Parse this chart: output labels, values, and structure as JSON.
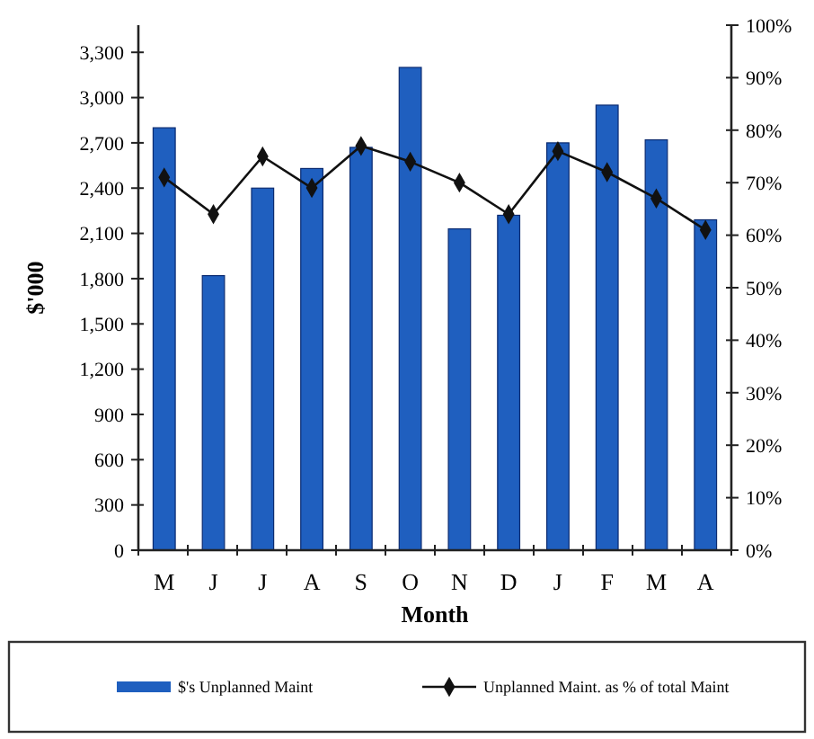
{
  "chart_data": {
    "type": "bar",
    "xlabel": "Month",
    "ylabel": "$'000",
    "categories": [
      "M",
      "J",
      "J",
      "A",
      "S",
      "O",
      "N",
      "D",
      "J",
      "F",
      "M",
      "A"
    ],
    "series": [
      {
        "name": "$'s Unplanned Maint",
        "color": "#1f5fbf",
        "values": [
          2800,
          1820,
          2400,
          2530,
          2670,
          3200,
          2130,
          2220,
          2700,
          2950,
          2720,
          2190
        ]
      },
      {
        "name": "Unplanned Maint. as % of total Maint",
        "type": "line",
        "axis": "y2",
        "color": "#111111",
        "values": [
          71,
          64,
          75,
          69,
          77,
          74,
          70,
          64,
          76,
          72,
          67,
          61
        ]
      }
    ],
    "ylim": [
      0,
      3480
    ],
    "yticks": [
      {
        "value": 0,
        "label": "0"
      },
      {
        "value": 300,
        "label": "300"
      },
      {
        "value": 600,
        "label": "600"
      },
      {
        "value": 900,
        "label": "900"
      },
      {
        "value": 1200,
        "label": "1,200"
      },
      {
        "value": 1500,
        "label": "1,500"
      },
      {
        "value": 1800,
        "label": "1,800"
      },
      {
        "value": 2100,
        "label": "2,100"
      },
      {
        "value": 2400,
        "label": "2,400"
      },
      {
        "value": 2700,
        "label": "2,700"
      },
      {
        "value": 3000,
        "label": "3,000"
      },
      {
        "value": 3300,
        "label": "3,300"
      }
    ],
    "y2lim": [
      0,
      100
    ],
    "y2ticks": [
      {
        "value": 0,
        "label": "0%"
      },
      {
        "value": 10,
        "label": "10%"
      },
      {
        "value": 20,
        "label": "20%"
      },
      {
        "value": 30,
        "label": "30%"
      },
      {
        "value": 40,
        "label": "40%"
      },
      {
        "value": 50,
        "label": "50%"
      },
      {
        "value": 60,
        "label": "60%"
      },
      {
        "value": 70,
        "label": "70%"
      },
      {
        "value": 80,
        "label": "80%"
      },
      {
        "value": 90,
        "label": "90%"
      },
      {
        "value": 100,
        "label": "100%"
      }
    ],
    "marker": "diamond",
    "legend": "bottom",
    "grid": false
  }
}
